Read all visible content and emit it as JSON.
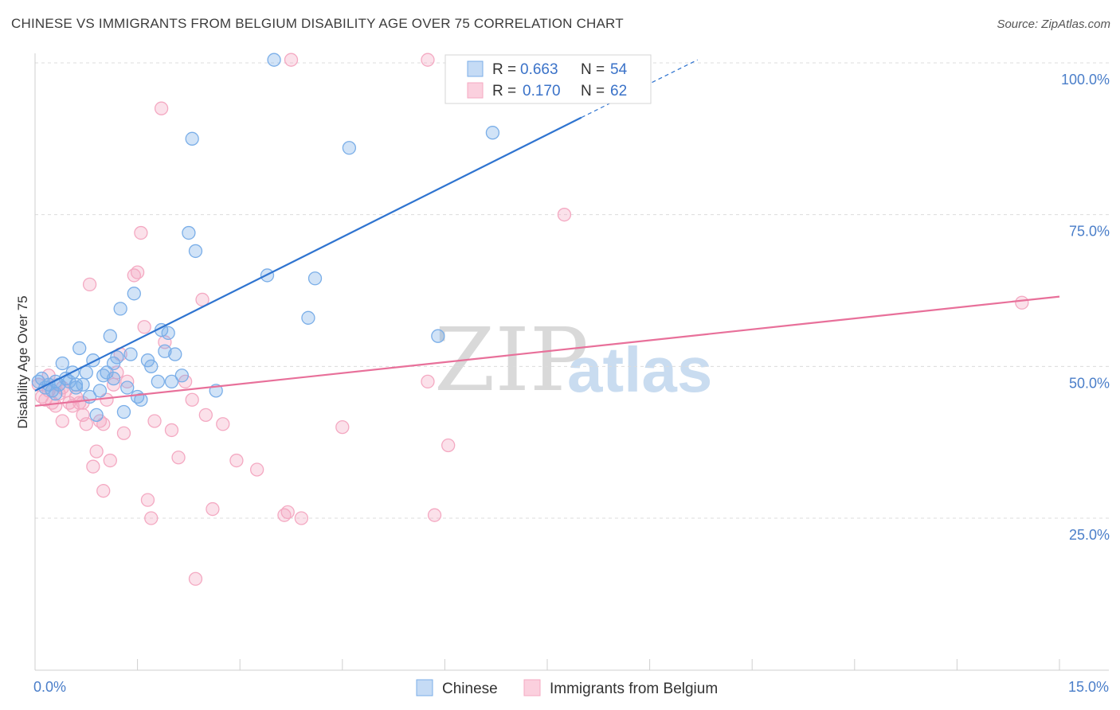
{
  "title": "CHINESE VS IMMIGRANTS FROM BELGIUM DISABILITY AGE OVER 75 CORRELATION CHART",
  "source": "Source: ZipAtlas.com",
  "watermark": {
    "zip": "ZIP",
    "atlas": "atlas"
  },
  "chart_data": {
    "type": "scatter",
    "title": "CHINESE VS IMMIGRANTS FROM BELGIUM DISABILITY AGE OVER 75 CORRELATION CHART",
    "xlabel": "",
    "ylabel": "Disability Age Over 75",
    "xlim": [
      0,
      15
    ],
    "ylim": [
      0,
      103
    ],
    "x_tick_labels": {
      "left": "0.0%",
      "right": "15.0%"
    },
    "y_ticks": [
      {
        "value": 25,
        "label": "25.0%"
      },
      {
        "value": 50,
        "label": "50.0%"
      },
      {
        "value": 75,
        "label": "75.0%"
      },
      {
        "value": 100,
        "label": "100.0%"
      }
    ],
    "legend": [
      {
        "series": "Chinese",
        "r_label": "R = ",
        "r": "0.663",
        "n_label": "N = ",
        "n": "54"
      },
      {
        "series": "Immigrants from Belgium",
        "r_label": "R = ",
        "r": "0.170",
        "n_label": "N = ",
        "n": "62"
      }
    ],
    "series": [
      {
        "name": "Chinese",
        "color": "#7aaee8",
        "line_color": "#2f74d0",
        "trend": {
          "x0": 0.0,
          "y0": 46.0,
          "x1": 8.0,
          "y1": 91.0,
          "dash_to_x": 9.7,
          "dash_to_y": 100.5
        },
        "points": [
          [
            0.05,
            47.5
          ],
          [
            0.1,
            48.0
          ],
          [
            0.15,
            46.5
          ],
          [
            0.2,
            47.0
          ],
          [
            0.25,
            46.0
          ],
          [
            0.3,
            45.5
          ],
          [
            0.35,
            47.0
          ],
          [
            0.4,
            50.5
          ],
          [
            0.45,
            48.0
          ],
          [
            0.5,
            47.5
          ],
          [
            0.55,
            49.0
          ],
          [
            0.6,
            46.5
          ],
          [
            0.65,
            53.0
          ],
          [
            0.7,
            47.0
          ],
          [
            0.75,
            49.0
          ],
          [
            0.8,
            45.0
          ],
          [
            0.85,
            51.0
          ],
          [
            0.9,
            42.0
          ],
          [
            1.0,
            48.5
          ],
          [
            1.05,
            49.0
          ],
          [
            1.1,
            55.0
          ],
          [
            1.15,
            50.5
          ],
          [
            1.2,
            51.5
          ],
          [
            1.25,
            59.5
          ],
          [
            1.3,
            42.5
          ],
          [
            1.35,
            46.5
          ],
          [
            1.4,
            52.0
          ],
          [
            1.45,
            62.0
          ],
          [
            1.5,
            45.0
          ],
          [
            1.55,
            44.5
          ],
          [
            1.65,
            51.0
          ],
          [
            1.7,
            50.0
          ],
          [
            1.8,
            47.5
          ],
          [
            1.85,
            56.0
          ],
          [
            1.9,
            52.5
          ],
          [
            1.95,
            55.5
          ],
          [
            2.0,
            47.5
          ],
          [
            2.05,
            52.0
          ],
          [
            2.15,
            48.5
          ],
          [
            2.25,
            72.0
          ],
          [
            2.3,
            87.5
          ],
          [
            2.35,
            69.0
          ],
          [
            2.65,
            46.0
          ],
          [
            3.4,
            65.0
          ],
          [
            3.5,
            100.5
          ],
          [
            4.0,
            58.0
          ],
          [
            4.1,
            64.5
          ],
          [
            4.6,
            86.0
          ],
          [
            5.9,
            55.0
          ],
          [
            6.7,
            88.5
          ],
          [
            0.3,
            47.5
          ],
          [
            0.6,
            47.0
          ],
          [
            1.15,
            48.0
          ],
          [
            0.95,
            46.0
          ]
        ]
      },
      {
        "name": "Immigrants from Belgium",
        "color": "#f4a9c2",
        "line_color": "#e8709a",
        "trend": {
          "x0": 0.0,
          "y0": 43.5,
          "x1": 15.0,
          "y1": 61.5
        },
        "points": [
          [
            0.05,
            47.0
          ],
          [
            0.1,
            45.0
          ],
          [
            0.15,
            44.5
          ],
          [
            0.2,
            46.0
          ],
          [
            0.25,
            44.0
          ],
          [
            0.3,
            43.5
          ],
          [
            0.35,
            45.5
          ],
          [
            0.4,
            41.0
          ],
          [
            0.45,
            46.0
          ],
          [
            0.5,
            44.0
          ],
          [
            0.55,
            43.5
          ],
          [
            0.6,
            45.0
          ],
          [
            0.65,
            44.0
          ],
          [
            0.7,
            42.0
          ],
          [
            0.75,
            40.5
          ],
          [
            0.8,
            63.5
          ],
          [
            0.85,
            33.5
          ],
          [
            0.9,
            36.0
          ],
          [
            0.95,
            41.0
          ],
          [
            1.0,
            29.5
          ],
          [
            1.05,
            44.5
          ],
          [
            1.1,
            34.5
          ],
          [
            1.15,
            47.0
          ],
          [
            1.2,
            49.0
          ],
          [
            1.25,
            52.0
          ],
          [
            1.3,
            39.0
          ],
          [
            1.35,
            47.5
          ],
          [
            1.45,
            65.0
          ],
          [
            1.5,
            65.5
          ],
          [
            1.55,
            72.0
          ],
          [
            1.6,
            56.5
          ],
          [
            1.65,
            28.0
          ],
          [
            1.7,
            25.0
          ],
          [
            1.75,
            41.0
          ],
          [
            1.85,
            92.5
          ],
          [
            1.9,
            54.0
          ],
          [
            2.0,
            39.5
          ],
          [
            2.1,
            35.0
          ],
          [
            2.2,
            47.5
          ],
          [
            2.3,
            44.5
          ],
          [
            2.35,
            15.0
          ],
          [
            2.45,
            61.0
          ],
          [
            2.5,
            42.0
          ],
          [
            2.6,
            26.5
          ],
          [
            2.75,
            40.5
          ],
          [
            2.95,
            34.5
          ],
          [
            3.25,
            33.0
          ],
          [
            3.65,
            25.5
          ],
          [
            3.7,
            26.0
          ],
          [
            3.75,
            100.5
          ],
          [
            3.9,
            25.0
          ],
          [
            4.5,
            40.0
          ],
          [
            5.75,
            100.5
          ],
          [
            5.75,
            47.5
          ],
          [
            5.85,
            25.5
          ],
          [
            6.05,
            37.0
          ],
          [
            7.75,
            75.0
          ],
          [
            14.45,
            60.5
          ],
          [
            0.2,
            48.5
          ],
          [
            0.4,
            46.5
          ],
          [
            0.7,
            44.0
          ],
          [
            1.0,
            40.5
          ]
        ]
      }
    ]
  },
  "bottom_legend": [
    "Chinese",
    "Immigrants from Belgium"
  ]
}
